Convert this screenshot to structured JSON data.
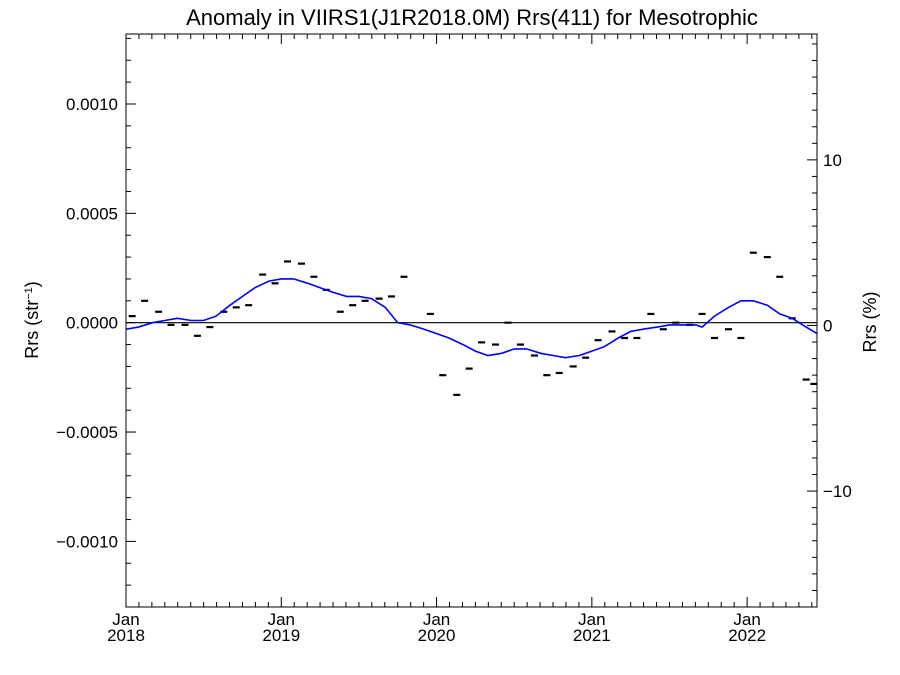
{
  "chart_data": {
    "type": "line",
    "title": "Anomaly in VIIRS1(J1R2018.0M) Rrs(411) for Mesotrophic",
    "ylabel_text": "Rrs (str",
    "ylabel_sup": "−1",
    "ylabel_close": ")",
    "y2label": "Rrs (%)",
    "ylim": [
      -0.0013,
      0.00132
    ],
    "y2lim": [
      -17.0,
      17.6
    ],
    "xlim": [
      2018.0,
      2022.45
    ],
    "yticks": [
      {
        "value": 0.001,
        "label": "0.0010"
      },
      {
        "value": 0.0005,
        "label": "0.0005"
      },
      {
        "value": 0.0,
        "label": "0.0000"
      },
      {
        "value": -0.0005,
        "label": "−0.0005"
      },
      {
        "value": -0.001,
        "label": "−0.0010"
      }
    ],
    "y2ticks": [
      {
        "value": 10,
        "label": "10"
      },
      {
        "value": 0,
        "label": "0"
      },
      {
        "value": -10,
        "label": "−10"
      }
    ],
    "xticks": [
      {
        "value": 2018.0,
        "month": "Jan",
        "year": "2018"
      },
      {
        "value": 2019.0,
        "month": "Jan",
        "year": "2019"
      },
      {
        "value": 2020.0,
        "month": "Jan",
        "year": "2020"
      },
      {
        "value": 2021.0,
        "month": "Jan",
        "year": "2021"
      },
      {
        "value": 2022.0,
        "month": "Jan",
        "year": "2022"
      }
    ],
    "zero_line": true,
    "colors": {
      "smoothed": "#0000ff",
      "monthly": "#000000",
      "axes": "#000000"
    },
    "series": [
      {
        "style": "dash-markers",
        "points": [
          [
            2018.04,
            3e-05
          ],
          [
            2018.12,
            0.0001
          ],
          [
            2018.21,
            5e-05
          ],
          [
            2018.29,
            -1e-05
          ],
          [
            2018.38,
            -1e-05
          ],
          [
            2018.46,
            -6e-05
          ],
          [
            2018.54,
            -2e-05
          ],
          [
            2018.63,
            5e-05
          ],
          [
            2018.71,
            7e-05
          ],
          [
            2018.79,
            8e-05
          ],
          [
            2018.88,
            0.00022
          ],
          [
            2018.96,
            0.00018
          ],
          [
            2019.04,
            0.00028
          ],
          [
            2019.13,
            0.00027
          ],
          [
            2019.21,
            0.00021
          ],
          [
            2019.29,
            0.00015
          ],
          [
            2019.38,
            5e-05
          ],
          [
            2019.46,
            8e-05
          ],
          [
            2019.54,
            0.0001
          ],
          [
            2019.63,
            0.00011
          ],
          [
            2019.71,
            0.00012
          ],
          [
            2019.79,
            0.00021
          ],
          [
            2019.96,
            4e-05
          ],
          [
            2020.04,
            -0.00024
          ],
          [
            2020.13,
            -0.00033
          ],
          [
            2020.21,
            -0.00021
          ],
          [
            2020.29,
            -9e-05
          ],
          [
            2020.38,
            -0.0001
          ],
          [
            2020.46,
            0.0
          ],
          [
            2020.54,
            -0.0001
          ],
          [
            2020.63,
            -0.00015
          ],
          [
            2020.71,
            -0.00024
          ],
          [
            2020.79,
            -0.00023
          ],
          [
            2020.88,
            -0.0002
          ],
          [
            2020.96,
            -0.00016
          ],
          [
            2021.04,
            -8e-05
          ],
          [
            2021.13,
            -4e-05
          ],
          [
            2021.21,
            -7e-05
          ],
          [
            2021.29,
            -7e-05
          ],
          [
            2021.38,
            4e-05
          ],
          [
            2021.46,
            -3e-05
          ],
          [
            2021.54,
            0.0
          ],
          [
            2021.63,
            -1e-05
          ],
          [
            2021.71,
            4e-05
          ],
          [
            2021.79,
            -7e-05
          ],
          [
            2021.88,
            -3e-05
          ],
          [
            2021.96,
            -7e-05
          ],
          [
            2022.04,
            0.00032
          ],
          [
            2022.13,
            0.0003
          ],
          [
            2022.21,
            0.00021
          ],
          [
            2022.29,
            2e-05
          ],
          [
            2022.38,
            -0.00026
          ],
          [
            2022.43,
            -0.00028
          ]
        ]
      },
      {
        "style": "line",
        "points": [
          [
            2018.0,
            -3e-05
          ],
          [
            2018.08,
            -2e-05
          ],
          [
            2018.17,
            0.0
          ],
          [
            2018.25,
            1e-05
          ],
          [
            2018.33,
            2e-05
          ],
          [
            2018.42,
            1e-05
          ],
          [
            2018.5,
            1e-05
          ],
          [
            2018.58,
            3e-05
          ],
          [
            2018.67,
            8e-05
          ],
          [
            2018.75,
            0.00012
          ],
          [
            2018.83,
            0.00016
          ],
          [
            2018.92,
            0.00019
          ],
          [
            2019.0,
            0.0002
          ],
          [
            2019.08,
            0.0002
          ],
          [
            2019.17,
            0.00018
          ],
          [
            2019.25,
            0.00016
          ],
          [
            2019.33,
            0.00014
          ],
          [
            2019.42,
            0.00012
          ],
          [
            2019.5,
            0.00012
          ],
          [
            2019.58,
            0.00011
          ],
          [
            2019.67,
            7e-05
          ],
          [
            2019.75,
            0.0
          ],
          [
            2019.83,
            -1e-05
          ],
          [
            2019.92,
            -3e-05
          ],
          [
            2020.0,
            -5e-05
          ],
          [
            2020.08,
            -7e-05
          ],
          [
            2020.17,
            -0.0001
          ],
          [
            2020.25,
            -0.00013
          ],
          [
            2020.33,
            -0.00015
          ],
          [
            2020.42,
            -0.00014
          ],
          [
            2020.5,
            -0.00012
          ],
          [
            2020.58,
            -0.00012
          ],
          [
            2020.67,
            -0.00014
          ],
          [
            2020.75,
            -0.00015
          ],
          [
            2020.83,
            -0.00016
          ],
          [
            2020.92,
            -0.00015
          ],
          [
            2021.0,
            -0.00013
          ],
          [
            2021.08,
            -0.00011
          ],
          [
            2021.17,
            -7e-05
          ],
          [
            2021.25,
            -4e-05
          ],
          [
            2021.33,
            -3e-05
          ],
          [
            2021.42,
            -2e-05
          ],
          [
            2021.5,
            -1e-05
          ],
          [
            2021.58,
            -1e-05
          ],
          [
            2021.67,
            -1e-05
          ],
          [
            2021.71,
            -2e-05
          ],
          [
            2021.79,
            3e-05
          ],
          [
            2021.88,
            7e-05
          ],
          [
            2021.96,
            0.0001
          ],
          [
            2022.04,
            0.0001
          ],
          [
            2022.13,
            8e-05
          ],
          [
            2022.21,
            4e-05
          ],
          [
            2022.29,
            2e-05
          ],
          [
            2022.38,
            -2e-05
          ],
          [
            2022.45,
            -5e-05
          ]
        ]
      }
    ]
  }
}
